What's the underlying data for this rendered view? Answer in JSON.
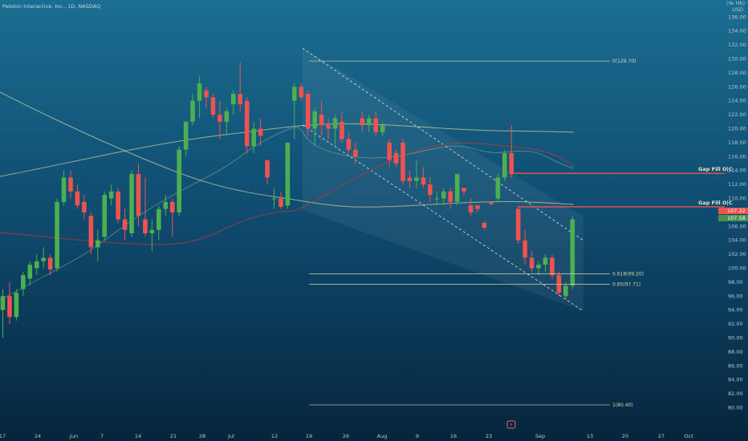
{
  "header": {
    "symbol_title": "Peloton Interactive, Inc., 1D, NASDAQ"
  },
  "axis": {
    "currency": "USD",
    "top_label": "(Ye Hb)"
  },
  "colors": {
    "up": "#4caf50",
    "down": "#ef5350",
    "ma_yellow": "#d7d59c",
    "ma_red": "#b23a3a",
    "channel": "#e8e8e8",
    "fib": "#d8d6a8",
    "gap": "#ef5350"
  },
  "chart_data": {
    "type": "candlestick",
    "title": "Peloton Interactive, Inc., 1D, NASDAQ",
    "ylim": [
      78,
      138
    ],
    "y_ticks": [
      80,
      82,
      84,
      86,
      88,
      90,
      92,
      94,
      96,
      98,
      100,
      102,
      104,
      106,
      108,
      110,
      112,
      114,
      116,
      118,
      120,
      122,
      124,
      126,
      128,
      130,
      132,
      134,
      136
    ],
    "x_tick_labels": [
      "17",
      "24",
      "Jun",
      "7",
      "14",
      "21",
      "28",
      "Jul",
      "12",
      "19",
      "26",
      "Aug",
      "9",
      "16",
      "23",
      "Sep",
      "13",
      "20",
      "27",
      "Oct"
    ],
    "candles": [
      {
        "o": 94.0,
        "h": 97.0,
        "l": 90.0,
        "c": 96.0
      },
      {
        "o": 96.0,
        "h": 98.0,
        "l": 92.0,
        "c": 93.0
      },
      {
        "o": 93.0,
        "h": 97.0,
        "l": 92.5,
        "c": 96.5
      },
      {
        "o": 97.0,
        "h": 99.5,
        "l": 96.0,
        "c": 99.0
      },
      {
        "o": 98.5,
        "h": 101.0,
        "l": 97.5,
        "c": 100.5
      },
      {
        "o": 100.0,
        "h": 102.0,
        "l": 99.0,
        "c": 101.0
      },
      {
        "o": 101.0,
        "h": 103.0,
        "l": 100.0,
        "c": 101.5
      },
      {
        "o": 101.5,
        "h": 102.0,
        "l": 99.0,
        "c": 99.8
      },
      {
        "o": 100.0,
        "h": 110.0,
        "l": 99.5,
        "c": 109.5
      },
      {
        "o": 109.5,
        "h": 114.0,
        "l": 109.0,
        "c": 113.0
      },
      {
        "o": 113.0,
        "h": 114.0,
        "l": 110.0,
        "c": 111.0
      },
      {
        "o": 111.0,
        "h": 112.0,
        "l": 108.5,
        "c": 109.0
      },
      {
        "o": 109.5,
        "h": 110.5,
        "l": 107.0,
        "c": 108.0
      },
      {
        "o": 107.5,
        "h": 108.0,
        "l": 102.0,
        "c": 103.0
      },
      {
        "o": 103.0,
        "h": 105.5,
        "l": 101.0,
        "c": 104.0
      },
      {
        "o": 104.5,
        "h": 111.0,
        "l": 104.0,
        "c": 110.5
      },
      {
        "o": 110.0,
        "h": 112.0,
        "l": 109.0,
        "c": 111.0
      },
      {
        "o": 111.0,
        "h": 111.5,
        "l": 106.5,
        "c": 107.0
      },
      {
        "o": 107.0,
        "h": 108.5,
        "l": 104.0,
        "c": 105.5
      },
      {
        "o": 105.0,
        "h": 114.0,
        "l": 104.5,
        "c": 113.5
      },
      {
        "o": 113.5,
        "h": 115.0,
        "l": 106.0,
        "c": 107.5
      },
      {
        "o": 107.0,
        "h": 113.0,
        "l": 104.5,
        "c": 105.0
      },
      {
        "o": 105.0,
        "h": 107.0,
        "l": 102.5,
        "c": 105.5
      },
      {
        "o": 105.5,
        "h": 109.0,
        "l": 104.0,
        "c": 108.5
      },
      {
        "o": 108.5,
        "h": 110.5,
        "l": 107.5,
        "c": 109.5
      },
      {
        "o": 109.5,
        "h": 110.0,
        "l": 104.5,
        "c": 108.0
      },
      {
        "o": 108.0,
        "h": 117.5,
        "l": 107.5,
        "c": 117.0
      },
      {
        "o": 117.0,
        "h": 121.0,
        "l": 116.0,
        "c": 121.0
      },
      {
        "o": 121.0,
        "h": 125.0,
        "l": 120.5,
        "c": 124.0
      },
      {
        "o": 124.0,
        "h": 127.5,
        "l": 121.5,
        "c": 126.5
      },
      {
        "o": 125.5,
        "h": 126.0,
        "l": 123.0,
        "c": 124.5
      },
      {
        "o": 124.5,
        "h": 125.0,
        "l": 121.5,
        "c": 122.0
      },
      {
        "o": 122.0,
        "h": 124.0,
        "l": 118.5,
        "c": 121.0
      },
      {
        "o": 121.0,
        "h": 123.0,
        "l": 119.0,
        "c": 122.5
      },
      {
        "o": 123.5,
        "h": 125.5,
        "l": 122.0,
        "c": 125.0
      },
      {
        "o": 125.0,
        "h": 129.5,
        "l": 122.5,
        "c": 123.5
      },
      {
        "o": 124.0,
        "h": 124.5,
        "l": 116.5,
        "c": 117.5
      },
      {
        "o": 117.5,
        "h": 121.0,
        "l": 116.5,
        "c": 120.0
      },
      {
        "o": 120.0,
        "h": 121.5,
        "l": 117.5,
        "c": 119.0
      },
      {
        "o": 115.5,
        "h": 115.5,
        "l": 112.0,
        "c": 113.0
      },
      {
        "o": 110.0,
        "h": 111.5,
        "l": 108.5,
        "c": 110.0
      },
      {
        "o": 110.0,
        "h": 111.0,
        "l": 108.5,
        "c": 108.8
      },
      {
        "o": 109.0,
        "h": 118.0,
        "l": 108.5,
        "c": 118.0
      },
      {
        "o": 124.0,
        "h": 126.5,
        "l": 118.5,
        "c": 126.0
      },
      {
        "o": 126.0,
        "h": 126.5,
        "l": 124.0,
        "c": 124.5
      },
      {
        "o": 125.0,
        "h": 125.5,
        "l": 119.0,
        "c": 120.0
      },
      {
        "o": 120.0,
        "h": 123.0,
        "l": 117.5,
        "c": 122.5
      },
      {
        "o": 122.0,
        "h": 124.0,
        "l": 119.0,
        "c": 120.5
      },
      {
        "o": 120.5,
        "h": 121.5,
        "l": 118.5,
        "c": 120.0
      },
      {
        "o": 120.0,
        "h": 122.0,
        "l": 117.5,
        "c": 121.5
      },
      {
        "o": 121.0,
        "h": 122.5,
        "l": 118.0,
        "c": 118.5
      },
      {
        "o": 118.5,
        "h": 119.5,
        "l": 116.5,
        "c": 117.0
      },
      {
        "o": 117.0,
        "h": 118.0,
        "l": 115.0,
        "c": 116.0
      },
      {
        "o": 121.5,
        "h": 122.5,
        "l": 119.5,
        "c": 120.5
      },
      {
        "o": 120.5,
        "h": 122.0,
        "l": 119.5,
        "c": 121.5
      },
      {
        "o": 121.5,
        "h": 122.5,
        "l": 119.0,
        "c": 119.5
      },
      {
        "o": 119.5,
        "h": 121.0,
        "l": 119.0,
        "c": 120.5
      },
      {
        "o": 118.0,
        "h": 118.5,
        "l": 114.5,
        "c": 115.5
      },
      {
        "o": 116.5,
        "h": 117.0,
        "l": 114.5,
        "c": 115.0
      },
      {
        "o": 118.0,
        "h": 118.5,
        "l": 112.0,
        "c": 112.5
      },
      {
        "o": 113.0,
        "h": 114.0,
        "l": 111.5,
        "c": 112.5
      },
      {
        "o": 112.5,
        "h": 115.5,
        "l": 111.5,
        "c": 113.0
      },
      {
        "o": 113.0,
        "h": 114.5,
        "l": 111.5,
        "c": 112.0
      },
      {
        "o": 112.0,
        "h": 113.0,
        "l": 109.5,
        "c": 110.5
      },
      {
        "o": 110.0,
        "h": 111.0,
        "l": 109.0,
        "c": 110.0
      },
      {
        "o": 110.0,
        "h": 111.5,
        "l": 109.0,
        "c": 111.0
      },
      {
        "o": 111.0,
        "h": 111.5,
        "l": 108.5,
        "c": 109.5
      },
      {
        "o": 109.5,
        "h": 113.5,
        "l": 109.0,
        "c": 113.5
      },
      {
        "o": 111.5,
        "h": 111.5,
        "l": 110.5,
        "c": 111.0
      },
      {
        "o": 109.0,
        "h": 110.0,
        "l": 107.5,
        "c": 108.0
      },
      {
        "o": 109.0,
        "h": 109.0,
        "l": 108.0,
        "c": 108.5
      },
      {
        "o": 106.5,
        "h": 106.8,
        "l": 105.5,
        "c": 105.8
      },
      {
        "o": 109.5,
        "h": 109.5,
        "l": 109.0,
        "c": 109.2
      },
      {
        "o": 110.0,
        "h": 113.5,
        "l": 109.5,
        "c": 113.0
      },
      {
        "o": 113.0,
        "h": 117.0,
        "l": 112.5,
        "c": 116.5
      },
      {
        "o": 116.5,
        "h": 120.5,
        "l": 113.0,
        "c": 113.5
      },
      {
        "o": 108.5,
        "h": 109.0,
        "l": 103.5,
        "c": 104.0
      },
      {
        "o": 104.0,
        "h": 105.5,
        "l": 100.5,
        "c": 101.5
      },
      {
        "o": 101.5,
        "h": 102.5,
        "l": 99.5,
        "c": 100.0
      },
      {
        "o": 100.0,
        "h": 101.0,
        "l": 99.0,
        "c": 100.5
      },
      {
        "o": 100.5,
        "h": 102.0,
        "l": 99.5,
        "c": 101.5
      },
      {
        "o": 101.5,
        "h": 102.0,
        "l": 98.5,
        "c": 99.0
      },
      {
        "o": 99.0,
        "h": 99.5,
        "l": 96.0,
        "c": 96.5
      },
      {
        "o": 96.0,
        "h": 98.0,
        "l": 95.5,
        "c": 97.5
      },
      {
        "o": 97.5,
        "h": 107.5,
        "l": 97.0,
        "c": 107.0
      }
    ],
    "fib_levels": [
      {
        "label": "0(129.70)",
        "value": 129.7
      },
      {
        "label": "0.618(99.20)",
        "value": 99.2
      },
      {
        "label": "0.65(97.71)",
        "value": 97.71
      },
      {
        "label": "1(80.40)",
        "value": 80.4
      }
    ],
    "gap_fills": [
      {
        "label": "Gap Fill O|C",
        "value": 113.6
      },
      {
        "label": "Gap Fill O|C",
        "value": 108.8
      }
    ],
    "price_tags": [
      "107.22",
      "107.58"
    ]
  }
}
